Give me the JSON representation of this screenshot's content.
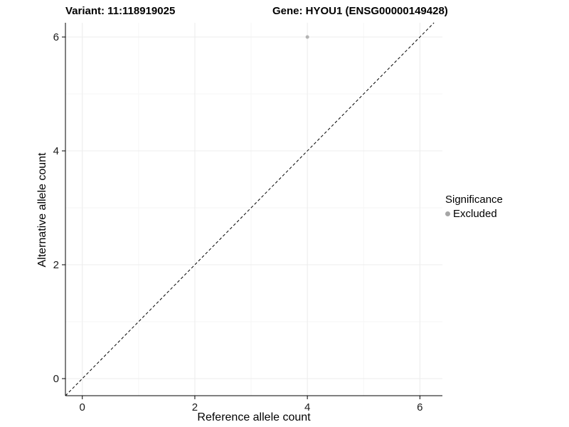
{
  "title": {
    "variant": "Variant: 11:118919025",
    "gene": "Gene: HYOU1 (ENSG00000149428)"
  },
  "axes": {
    "xlabel": "Reference allele count",
    "ylabel": "Alternative allele count"
  },
  "legend": {
    "title": "Significance",
    "items": [
      {
        "label": "Excluded",
        "color": "#a6a6a6"
      }
    ]
  },
  "chart_data": {
    "type": "scatter",
    "title": "Variant: 11:118919025 | Gene: HYOU1 (ENSG00000149428)",
    "xlabel": "Reference allele count",
    "ylabel": "Alternative allele count",
    "xlim": [
      -0.3,
      6.4
    ],
    "ylim": [
      -0.3,
      6.25
    ],
    "xticks": [
      0,
      2,
      4,
      6
    ],
    "yticks": [
      0,
      2,
      4,
      6
    ],
    "grid": true,
    "legend_position": "right",
    "series": [
      {
        "name": "Excluded",
        "color": "#b3b3b3",
        "points": [
          {
            "x": 4,
            "y": 6
          }
        ]
      }
    ],
    "reference_line": {
      "type": "identity",
      "style": "dashed",
      "color": "#000000"
    },
    "colors": {
      "major_grid": "#ececec",
      "minor_grid": "#f6f6f6",
      "axis": "#000000"
    }
  }
}
